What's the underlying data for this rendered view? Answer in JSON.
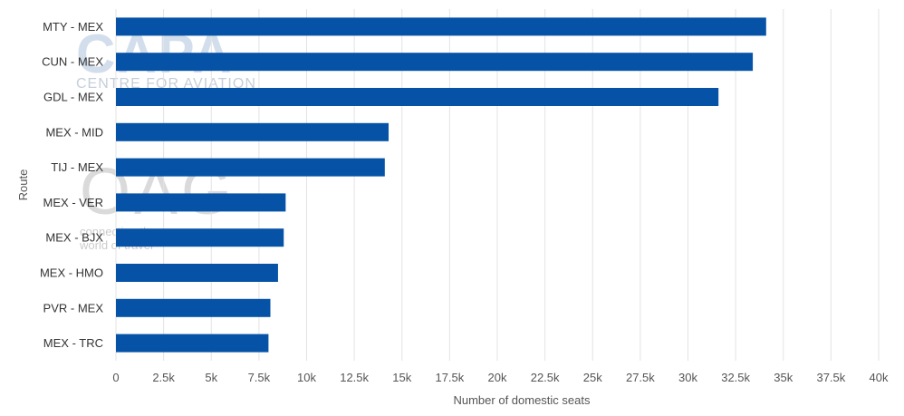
{
  "watermarks": {
    "capa_logo": "CAPA",
    "capa_tagline": "CENTRE FOR AVIATION",
    "oag_logo": "OAG",
    "oag_tagline_1": "connecting the",
    "oag_tagline_2": "world of travel"
  },
  "colors": {
    "bar": "#0652a7",
    "grid": "#e3e3e3",
    "axis_text": "#555555",
    "label_text": "#333333"
  },
  "chart_data": {
    "type": "bar",
    "orientation": "horizontal",
    "categories": [
      "MTY - MEX",
      "CUN - MEX",
      "GDL - MEX",
      "MEX - MID",
      "TIJ - MEX",
      "MEX - VER",
      "MEX - BJX",
      "MEX - HMO",
      "PVR - MEX",
      "MEX - TRC"
    ],
    "values": [
      34100,
      33400,
      31600,
      14300,
      14100,
      8900,
      8800,
      8500,
      8100,
      8000
    ],
    "xlabel": "Number of domestic seats",
    "ylabel": "Route",
    "xlim": [
      0,
      40000
    ],
    "xticks": [
      0,
      2500,
      5000,
      7500,
      10000,
      12500,
      15000,
      17500,
      20000,
      22500,
      25000,
      27500,
      30000,
      32500,
      35000,
      37500,
      40000
    ],
    "xtick_labels": [
      "0",
      "2.5k",
      "5k",
      "7.5k",
      "10k",
      "12.5k",
      "15k",
      "17.5k",
      "20k",
      "22.5k",
      "25k",
      "27.5k",
      "30k",
      "32.5k",
      "35k",
      "37.5k",
      "40k"
    ],
    "grid": true,
    "legend": "none"
  }
}
